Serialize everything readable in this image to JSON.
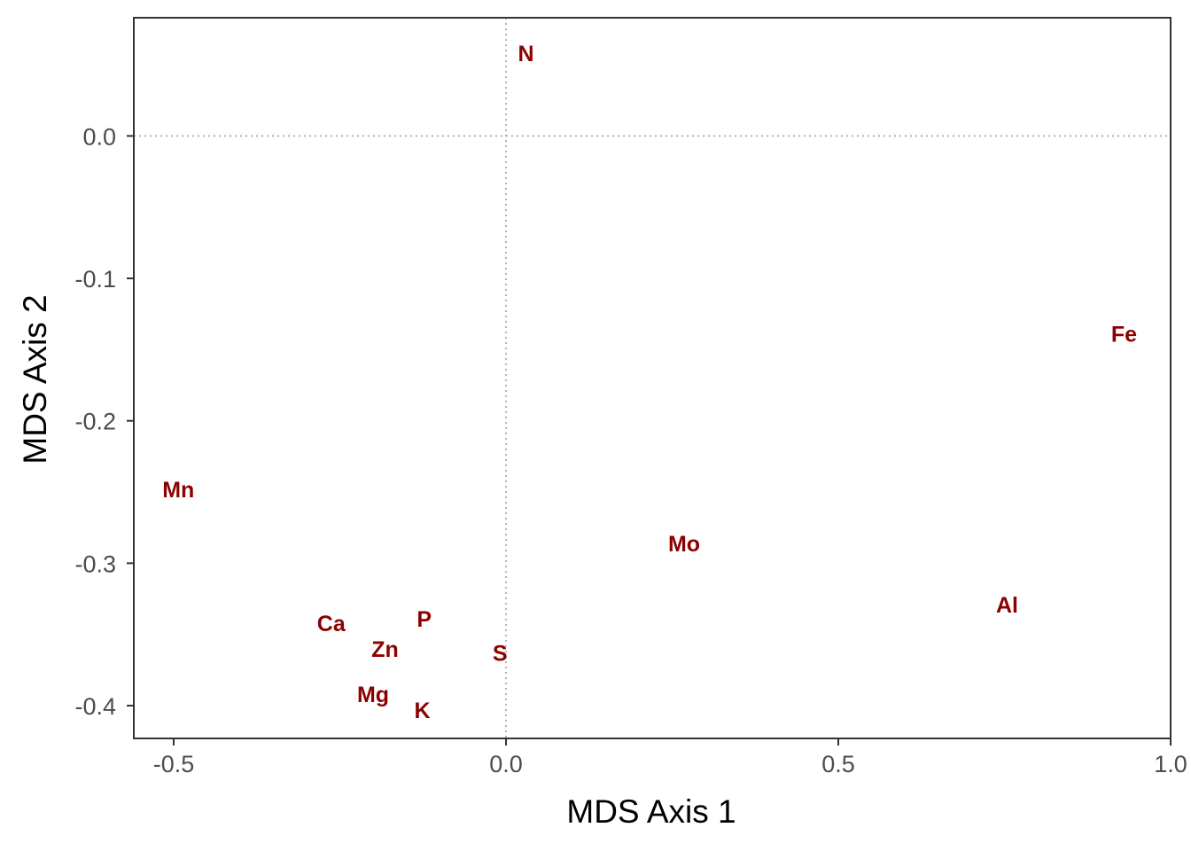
{
  "chart_data": {
    "type": "scatter",
    "title": "",
    "xlabel": "MDS Axis 1",
    "ylabel": "MDS Axis 2",
    "xlim": [
      -0.56,
      1.0
    ],
    "ylim": [
      -0.423,
      0.083
    ],
    "x_ticks": [
      -0.5,
      0.0,
      0.5,
      1.0
    ],
    "x_tick_labels": [
      "-0.5",
      "0.0",
      "0.5",
      "1.0"
    ],
    "y_ticks": [
      0.0,
      -0.1,
      -0.2,
      -0.3,
      -0.4
    ],
    "y_tick_labels": [
      "0.0",
      "-0.1",
      "-0.2",
      "-0.3",
      "-0.4"
    ],
    "reference_lines": {
      "x": 0,
      "y": 0,
      "style": "dotted"
    },
    "grid": false,
    "label_color": "#8b0000",
    "points": [
      {
        "label": "N",
        "x": 0.03,
        "y": 0.058
      },
      {
        "label": "Fe",
        "x": 0.93,
        "y": -0.139
      },
      {
        "label": "Mn",
        "x": -0.493,
        "y": -0.248
      },
      {
        "label": "Mo",
        "x": 0.268,
        "y": -0.286
      },
      {
        "label": "Al",
        "x": 0.754,
        "y": -0.329
      },
      {
        "label": "Ca",
        "x": -0.263,
        "y": -0.342
      },
      {
        "label": "P",
        "x": -0.123,
        "y": -0.339
      },
      {
        "label": "Zn",
        "x": -0.182,
        "y": -0.36
      },
      {
        "label": "S",
        "x": -0.009,
        "y": -0.363
      },
      {
        "label": "Mg",
        "x": -0.2,
        "y": -0.392
      },
      {
        "label": "K",
        "x": -0.126,
        "y": -0.403
      }
    ]
  }
}
